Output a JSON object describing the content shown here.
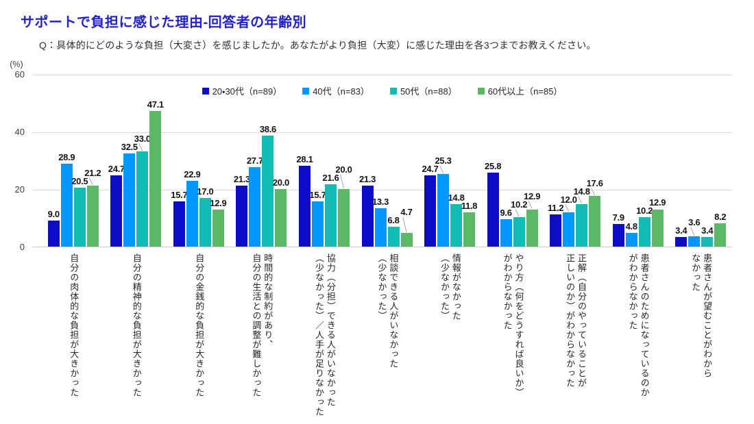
{
  "header": {
    "title": "サポートで負担に感じた理由-回答者の年齢別",
    "question": "Q：具体的にどのような負担（大変さ）を感じましたか。あなたがより負担（大変）に感じた理由を各3つまでお教えください。"
  },
  "chart_data": {
    "type": "bar",
    "title": "サポートで負担に感じた理由-回答者の年齢別",
    "unit_label": "(%)",
    "ylim": [
      0,
      60
    ],
    "yticks": [
      0,
      20,
      40,
      60
    ],
    "grid": true,
    "legend_position": "top-center-inside",
    "value_labels": "one-decimal",
    "grid_color": "#d9d9d9",
    "title_color": "#2222cc",
    "categories": [
      "自分の肉体的な負担が大きかった",
      "自分の精神的な負担が大きかった",
      "自分の金銭的な負担が大きかった",
      "時間的な制約があり、\n自分の生活との調整が難しかった",
      "協力（分担）できる人がいなかった\n（少なかった）／人手が足りなかった",
      "相談できる人がいなかった\n（少なかった）",
      "情報がなかった\n（少なかった）",
      "やり方（何をどうすれば良いか）\nがわからなかった",
      "正解（自分のやっていることが\n正しいのか）がわからなかった",
      "患者さんのためになっているのか\nがわからなかった",
      "患者さんが望むことがわから\nなかった"
    ],
    "series": [
      {
        "name": "20・30代（n=89）",
        "color": "#0d0dc8",
        "values": [
          9.0,
          24.7,
          15.7,
          21.3,
          28.1,
          21.3,
          24.7,
          25.8,
          11.2,
          7.9,
          3.4
        ]
      },
      {
        "name": "40代（n=83）",
        "color": "#0098fe",
        "values": [
          28.9,
          32.5,
          22.9,
          27.7,
          15.7,
          13.3,
          25.3,
          9.6,
          12.0,
          4.8,
          3.6
        ]
      },
      {
        "name": "50代（n=88）",
        "color": "#12bbb3",
        "values": [
          20.5,
          33.0,
          17.0,
          38.6,
          21.6,
          6.8,
          14.8,
          10.2,
          14.8,
          10.2,
          3.4
        ]
      },
      {
        "name": "60代以上（n=85）",
        "color": "#5bb966",
        "values": [
          21.2,
          47.1,
          12.9,
          20.0,
          20.0,
          4.7,
          11.8,
          12.9,
          17.6,
          12.9,
          8.2
        ]
      }
    ]
  }
}
